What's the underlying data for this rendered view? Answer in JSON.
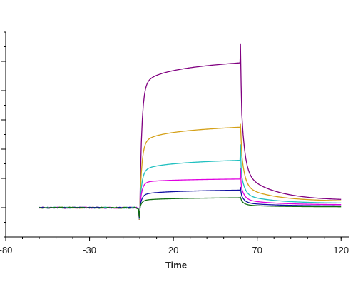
{
  "chart_data": {
    "type": "line",
    "title": "",
    "xlabel": "Time",
    "ylabel": "",
    "xlim": [
      -80,
      125
    ],
    "ylim": [
      -1,
      6
    ],
    "grid": false,
    "x_tick_labels": [
      "-80",
      "-30",
      "20",
      "70",
      "120"
    ],
    "x_tick_values": [
      -80,
      -30,
      20,
      70,
      120
    ],
    "y_major_ticks": [
      0,
      1,
      2,
      3,
      4,
      5
    ],
    "series": [
      {
        "color": "#800080",
        "baseline": 0,
        "plateau_start": 3.92,
        "plateau_end": 4.95,
        "spike": 5.6,
        "dissoc_end": 0.25
      },
      {
        "color": "#D4A017",
        "baseline": 0,
        "plateau_start": 2.05,
        "plateau_end": 2.75,
        "spike": 2.85,
        "dissoc_end": 0.22
      },
      {
        "color": "#20C0C0",
        "baseline": 0,
        "plateau_start": 1.15,
        "plateau_end": 1.62,
        "spike": 2.15,
        "dissoc_end": 0.15
      },
      {
        "color": "#E000E0",
        "baseline": 0,
        "plateau_start": 0.82,
        "plateau_end": 0.98,
        "spike": 1.35,
        "dissoc_end": 0.1
      },
      {
        "color": "#1010A0",
        "baseline": 0,
        "plateau_start": 0.4,
        "plateau_end": 0.6,
        "spike": 0.7,
        "dissoc_end": 0.06
      },
      {
        "color": "#107010",
        "baseline": 0,
        "plateau_start": 0.22,
        "plateau_end": 0.34,
        "spike": 0.36,
        "dissoc_end": 0.03
      }
    ],
    "events": {
      "start": -60,
      "association_start": 0,
      "dissociation_start": 60,
      "end": 120
    }
  }
}
